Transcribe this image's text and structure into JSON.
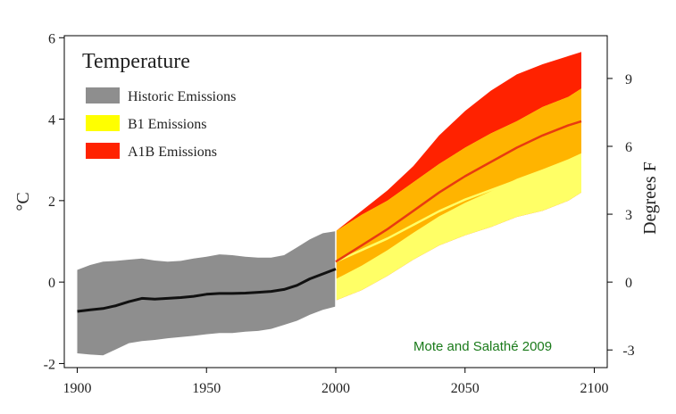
{
  "chart_data": {
    "type": "area",
    "title": "Temperature",
    "ylabel": "°C",
    "y2label": "Degrees F",
    "xlim": [
      1895,
      2105
    ],
    "ylim": [
      -2.1,
      6.05
    ],
    "y2ticks": [
      -3,
      0,
      3,
      6,
      9
    ],
    "xticks": [
      1900,
      1950,
      2000,
      2050,
      2100
    ],
    "yticks": [
      -2,
      0,
      2,
      4,
      6
    ],
    "grid": false,
    "legend_position": "top-left",
    "credit": "Mote and Salathé 2009",
    "colors": {
      "historic_band": "#8e8e8e",
      "b1_band": "#ffff66",
      "a1b_band": "#ff2200",
      "overlap_band": "#ffb400",
      "historic_line": "#111111",
      "b1_line": "#ffff66",
      "a1b_line": "#e83a10"
    },
    "series": [
      {
        "name": "Historic Emissions",
        "x": [
          1900,
          1905,
          1910,
          1915,
          1920,
          1925,
          1930,
          1935,
          1940,
          1945,
          1950,
          1955,
          1960,
          1965,
          1970,
          1975,
          1980,
          1985,
          1990,
          1995,
          2000
        ],
        "mean": [
          -0.72,
          -0.68,
          -0.65,
          -0.58,
          -0.48,
          -0.4,
          -0.42,
          -0.4,
          -0.38,
          -0.35,
          -0.3,
          -0.28,
          -0.28,
          -0.27,
          -0.25,
          -0.23,
          -0.18,
          -0.08,
          0.08,
          0.2,
          0.32
        ],
        "upper": [
          0.3,
          0.42,
          0.5,
          0.52,
          0.55,
          0.58,
          0.53,
          0.5,
          0.52,
          0.58,
          0.62,
          0.68,
          0.66,
          0.62,
          0.6,
          0.6,
          0.66,
          0.85,
          1.05,
          1.2,
          1.25
        ],
        "lower": [
          -1.75,
          -1.78,
          -1.8,
          -1.65,
          -1.5,
          -1.45,
          -1.42,
          -1.38,
          -1.35,
          -1.32,
          -1.28,
          -1.25,
          -1.25,
          -1.22,
          -1.2,
          -1.15,
          -1.05,
          -0.95,
          -0.8,
          -0.68,
          -0.6
        ]
      },
      {
        "name": "B1 Emissions",
        "x": [
          2000,
          2010,
          2020,
          2030,
          2040,
          2050,
          2060,
          2070,
          2080,
          2090,
          2095
        ],
        "mean": [
          0.5,
          0.9,
          1.3,
          1.75,
          2.2,
          2.6,
          2.95,
          3.3,
          3.6,
          3.85,
          3.95
        ],
        "upper": [
          1.25,
          1.65,
          2.0,
          2.45,
          2.9,
          3.3,
          3.65,
          3.95,
          4.3,
          4.55,
          4.75
        ],
        "lower": [
          -0.45,
          -0.2,
          0.15,
          0.55,
          0.9,
          1.15,
          1.35,
          1.6,
          1.75,
          2.0,
          2.2
        ]
      },
      {
        "name": "A1B Emissions",
        "x": [
          2000,
          2010,
          2020,
          2030,
          2040,
          2050,
          2060,
          2070,
          2080,
          2090,
          2095
        ],
        "mean": [
          0.5,
          0.9,
          1.3,
          1.75,
          2.2,
          2.6,
          2.95,
          3.3,
          3.6,
          3.85,
          3.95
        ],
        "upper": [
          1.25,
          1.75,
          2.25,
          2.85,
          3.6,
          4.2,
          4.7,
          5.1,
          5.35,
          5.55,
          5.65
        ],
        "lower": [
          -0.45,
          -0.2,
          0.15,
          0.55,
          0.9,
          1.15,
          1.35,
          1.6,
          1.75,
          2.0,
          2.2
        ]
      }
    ]
  }
}
